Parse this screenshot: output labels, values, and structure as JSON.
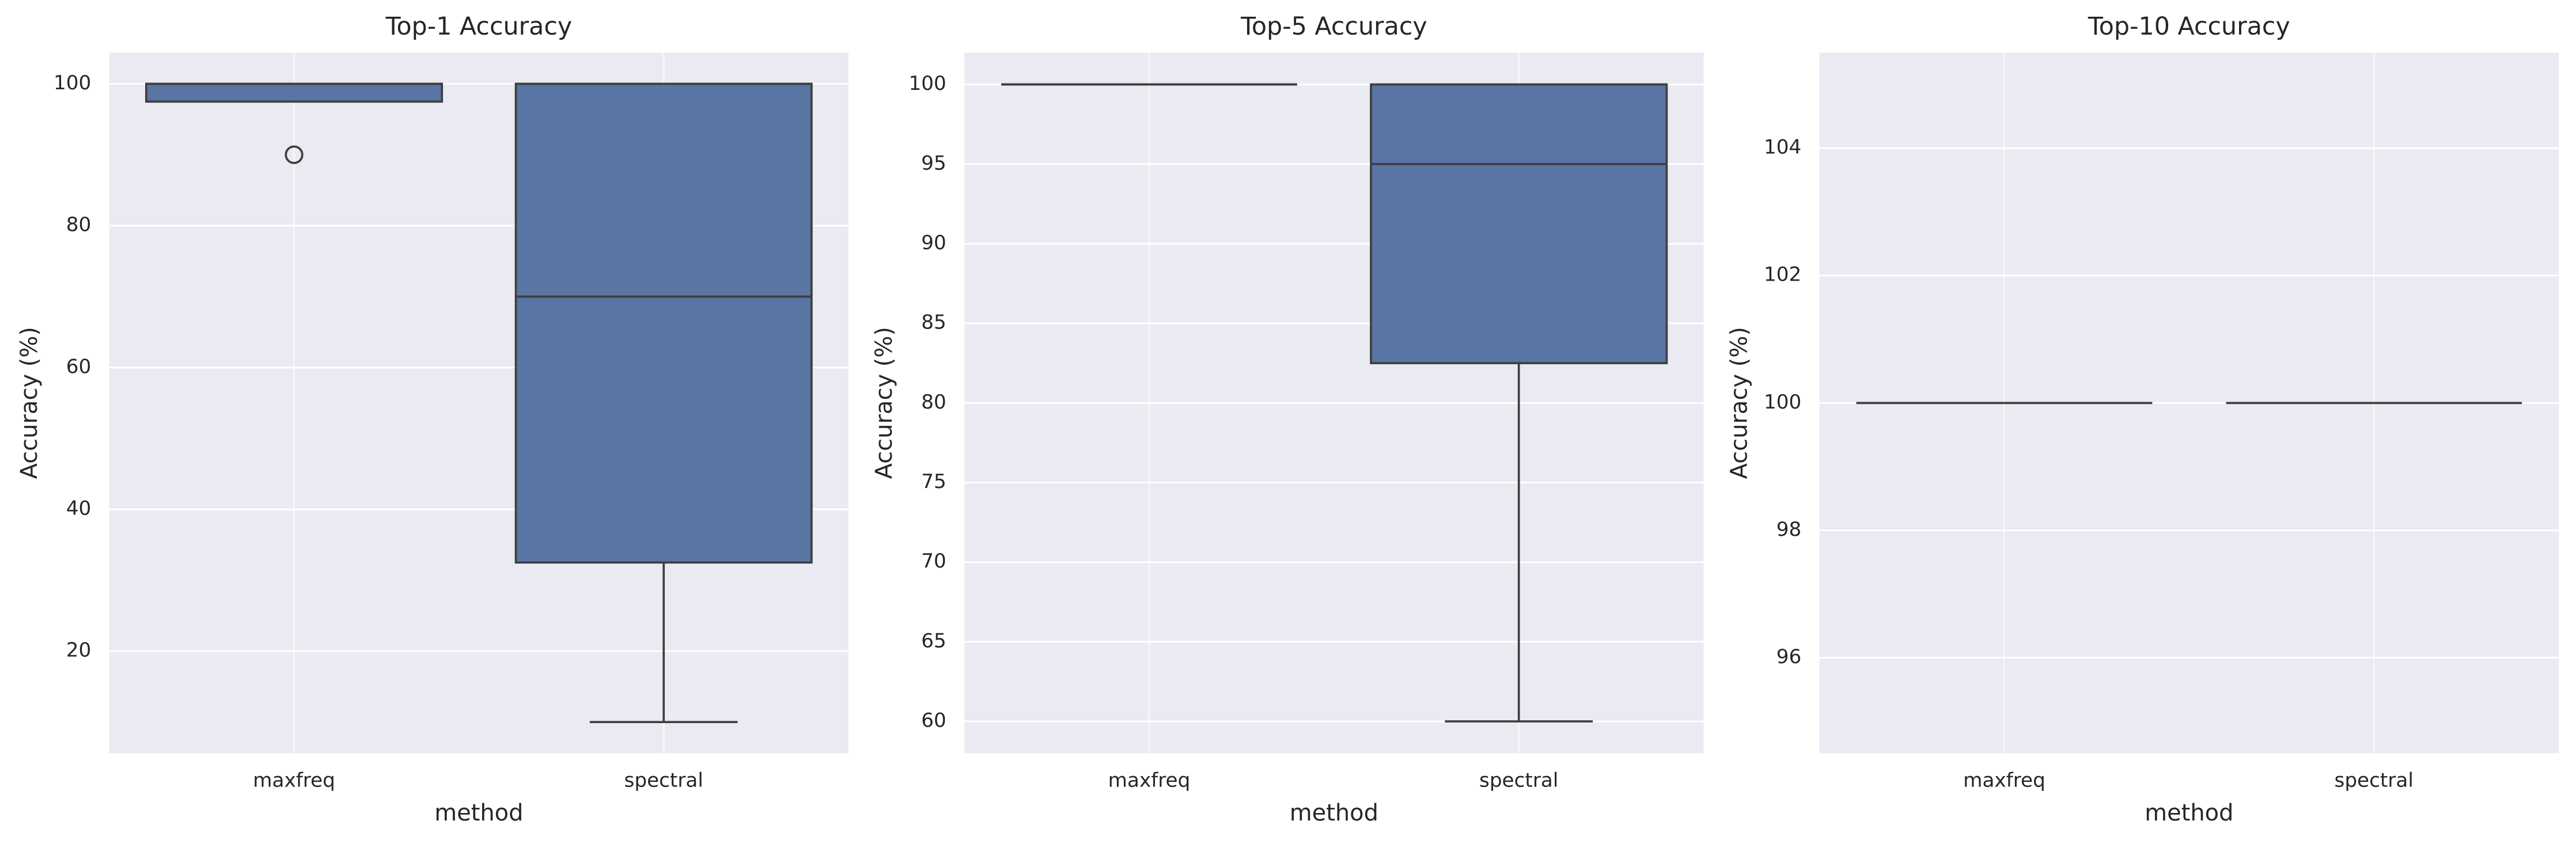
{
  "chart_data": [
    {
      "type": "box",
      "title": "Top-1 Accuracy",
      "xlabel": "method",
      "ylabel": "Accuracy (%)",
      "categories": [
        "maxfreq",
        "spectral"
      ],
      "boxes": [
        {
          "min": 97.5,
          "q1": 97.5,
          "median": 100,
          "q3": 100,
          "max": 100,
          "outliers": [
            90
          ]
        },
        {
          "min": 10,
          "q1": 32.5,
          "median": 70,
          "q3": 100,
          "max": 100,
          "outliers": []
        }
      ],
      "color": "#5975a4",
      "ylim": [
        5.6,
        104.4
      ],
      "yticks": [
        20,
        40,
        60,
        80,
        100
      ],
      "grid": true
    },
    {
      "type": "box",
      "title": "Top-5 Accuracy",
      "xlabel": "method",
      "ylabel": "Accuracy (%)",
      "categories": [
        "maxfreq",
        "spectral"
      ],
      "boxes": [
        {
          "min": 100,
          "q1": 100,
          "median": 100,
          "q3": 100,
          "max": 100,
          "outliers": []
        },
        {
          "min": 60,
          "q1": 82.5,
          "median": 95,
          "q3": 100,
          "max": 100,
          "outliers": []
        }
      ],
      "color": "#5975a4",
      "ylim": [
        58,
        102
      ],
      "yticks": [
        60,
        65,
        70,
        75,
        80,
        85,
        90,
        95,
        100
      ],
      "grid": true
    },
    {
      "type": "box",
      "title": "Top-10 Accuracy",
      "xlabel": "method",
      "ylabel": "Accuracy (%)",
      "categories": [
        "maxfreq",
        "spectral"
      ],
      "boxes": [
        {
          "min": 100,
          "q1": 100,
          "median": 100,
          "q3": 100,
          "max": 100,
          "outliers": []
        },
        {
          "min": 100,
          "q1": 100,
          "median": 100,
          "q3": 100,
          "max": 100,
          "outliers": []
        }
      ],
      "color": "#5975a4",
      "ylim": [
        94.5,
        105.5
      ],
      "yticks": [
        96,
        98,
        100,
        102,
        104
      ],
      "grid": true
    }
  ]
}
